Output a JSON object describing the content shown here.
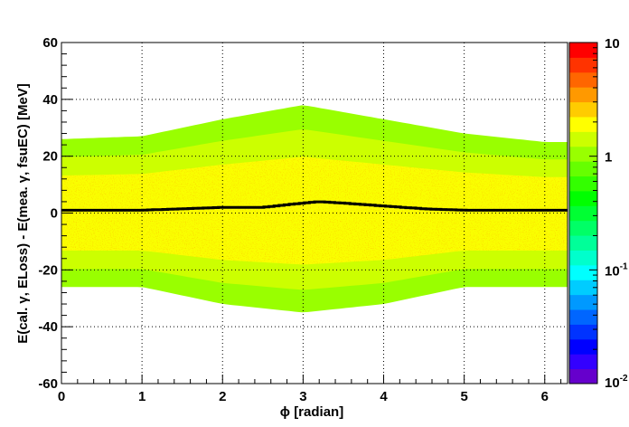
{
  "chart_data": {
    "type": "heatmap",
    "title": "",
    "xlabel": "ϕ [radian]",
    "ylabel": "E(cal. γ, ELoss) - E(mea.  γ, fsuEC) [MeV]",
    "xlim": [
      0,
      6.283
    ],
    "ylim": [
      -60,
      60
    ],
    "x_ticks": [
      "0",
      "1",
      "2",
      "3",
      "4",
      "5",
      "6"
    ],
    "y_ticks": [
      "-60",
      "-40",
      "-20",
      "0",
      "20",
      "40",
      "60"
    ],
    "z_scale": "log",
    "z_range": [
      0.01,
      10
    ],
    "z_ticks": [
      {
        "base": "10",
        "exp": "-2"
      },
      {
        "base": "10",
        "exp": "-1"
      },
      {
        "base": "1",
        "exp": ""
      },
      {
        "base": "10",
        "exp": ""
      }
    ],
    "grid": true,
    "palette": [
      "#6600cc",
      "#3300ff",
      "#0000ff",
      "#0033ff",
      "#0066ff",
      "#0099ff",
      "#00ccff",
      "#00ffff",
      "#00ffcc",
      "#00ff99",
      "#00ff66",
      "#00ff33",
      "#00ff00",
      "#33ff00",
      "#66ff00",
      "#99ff00",
      "#ccff00",
      "#ffff00",
      "#ffcc00",
      "#ff9900",
      "#ff6600",
      "#ff3300",
      "#ff0000"
    ],
    "band": {
      "x": [
        0,
        1,
        2,
        3,
        4,
        5,
        6,
        6.28
      ],
      "upper_edge": [
        24,
        25,
        31,
        36,
        31,
        26,
        23,
        23
      ],
      "lower_edge": [
        -24,
        -24,
        -30,
        -33,
        -30,
        -24,
        -24,
        -24
      ]
    },
    "profile": {
      "name": "mean",
      "x": [
        0,
        0.5,
        1,
        1.5,
        2,
        2.5,
        3,
        3.2,
        3.5,
        4,
        4.5,
        5,
        5.5,
        6,
        6.28
      ],
      "y": [
        1,
        1,
        1,
        1.5,
        2,
        2,
        3.5,
        4,
        3.5,
        2.5,
        1.5,
        1,
        1,
        1,
        1
      ]
    }
  }
}
